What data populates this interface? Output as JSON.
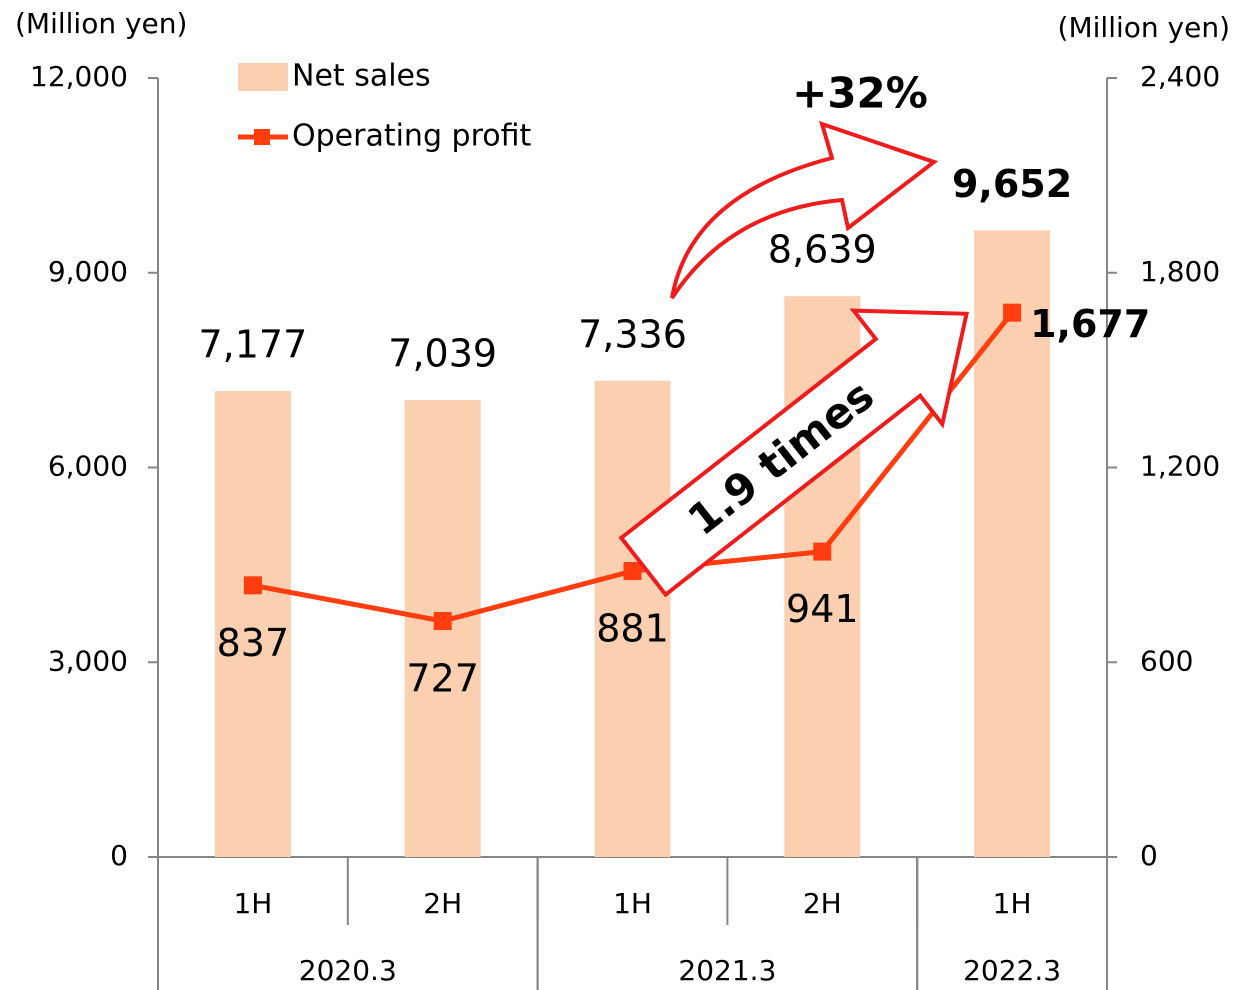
{
  "chart_data": {
    "type": "combo",
    "y_label": "(Million yen)",
    "y2_label": "(Million yen)",
    "categories": [
      "1H",
      "2H",
      "1H",
      "2H",
      "1H"
    ],
    "category_groups": [
      {
        "name": "2020.3",
        "count": 2
      },
      {
        "name": "2021.3",
        "count": 2
      },
      {
        "name": "2022.3",
        "count": 1
      }
    ],
    "series": [
      {
        "name": "Net sales",
        "type": "bar",
        "color": "#fbd0b0",
        "values": [
          7177,
          7039,
          7336,
          8639,
          9652
        ],
        "value_labels": [
          "7,177",
          "7,039",
          "7,336",
          "8,639",
          "9,652"
        ]
      },
      {
        "name": "Operating profit",
        "type": "line",
        "axis": "y2",
        "color": "#ff3d0f",
        "values": [
          837,
          727,
          881,
          941,
          1677
        ],
        "value_labels": [
          "837",
          "727",
          "881",
          "941",
          "1,677"
        ]
      }
    ],
    "ylim": [
      0,
      12000
    ],
    "yticks": [
      0,
      {
        "value": 3000,
        "label": "3,000"
      },
      {
        "value": 6000,
        "label": "6,000"
      },
      {
        "value": 9000,
        "label": "9,000"
      },
      {
        "value": 12000,
        "label": "12,000"
      }
    ],
    "y2lim": [
      0,
      2400
    ],
    "y2ticks": [
      0,
      600,
      {
        "value": 1200,
        "label": "1,200"
      },
      {
        "value": 1800,
        "label": "1,800"
      },
      {
        "value": 2400,
        "label": "2,400"
      }
    ],
    "annotations": [
      "+32%",
      "1.9 times"
    ]
  }
}
